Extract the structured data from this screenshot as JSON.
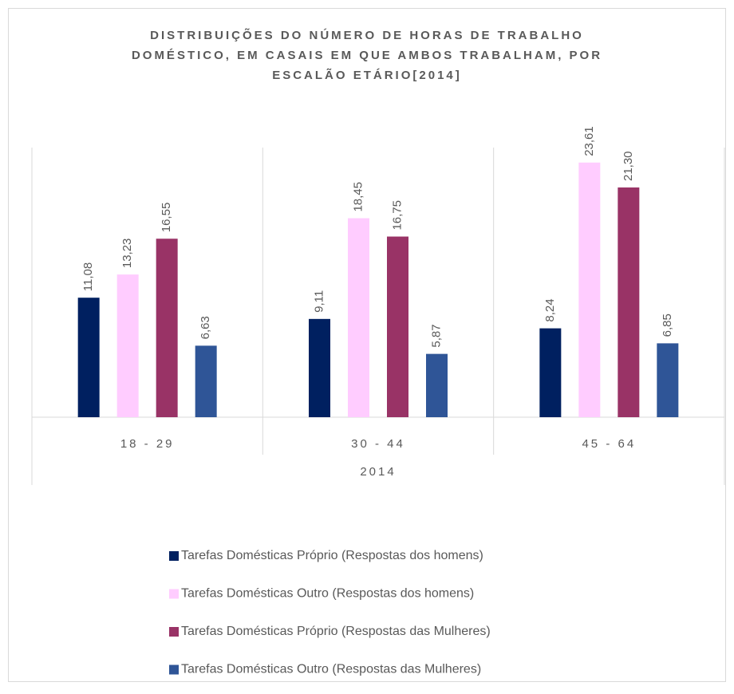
{
  "chart_data": {
    "type": "bar",
    "title": [
      "DISTRIBUIÇÕES DO NÚMERO DE HORAS DE TRABALHO",
      "DOMÉSTICO, EM CASAIS EM QUE AMBOS TRABALHAM, POR",
      "ESCALÃO ETÁRIO[2014]"
    ],
    "categories": [
      "18 - 29",
      "30 - 44",
      "45 - 64"
    ],
    "category_group": "2014",
    "series": [
      {
        "name": "Tarefas Domésticas Próprio (Respostas dos homens)",
        "color": "#002060",
        "values": [
          11.08,
          9.11,
          8.24
        ],
        "value_labels": [
          "11,08",
          "9,11",
          "8,24"
        ]
      },
      {
        "name": "Tarefas Domésticas Outro (Respostas dos homens)",
        "color": "#ffccff",
        "values": [
          13.23,
          18.45,
          23.61
        ],
        "value_labels": [
          "13,23",
          "18,45",
          "23,61"
        ]
      },
      {
        "name": "Tarefas Domésticas Próprio (Respostas das Mulheres)",
        "color": "#993366",
        "values": [
          16.55,
          16.75,
          21.3
        ],
        "value_labels": [
          "16,55",
          "16,75",
          "21,30"
        ]
      },
      {
        "name": "Tarefas Domésticas Outro (Respostas das Mulheres)",
        "color": "#2f5597",
        "values": [
          6.63,
          5.87,
          6.85
        ],
        "value_labels": [
          "6,63",
          "5,87",
          "6,85"
        ]
      }
    ],
    "ylim": [
      0,
      25
    ],
    "legend": "bottom"
  }
}
